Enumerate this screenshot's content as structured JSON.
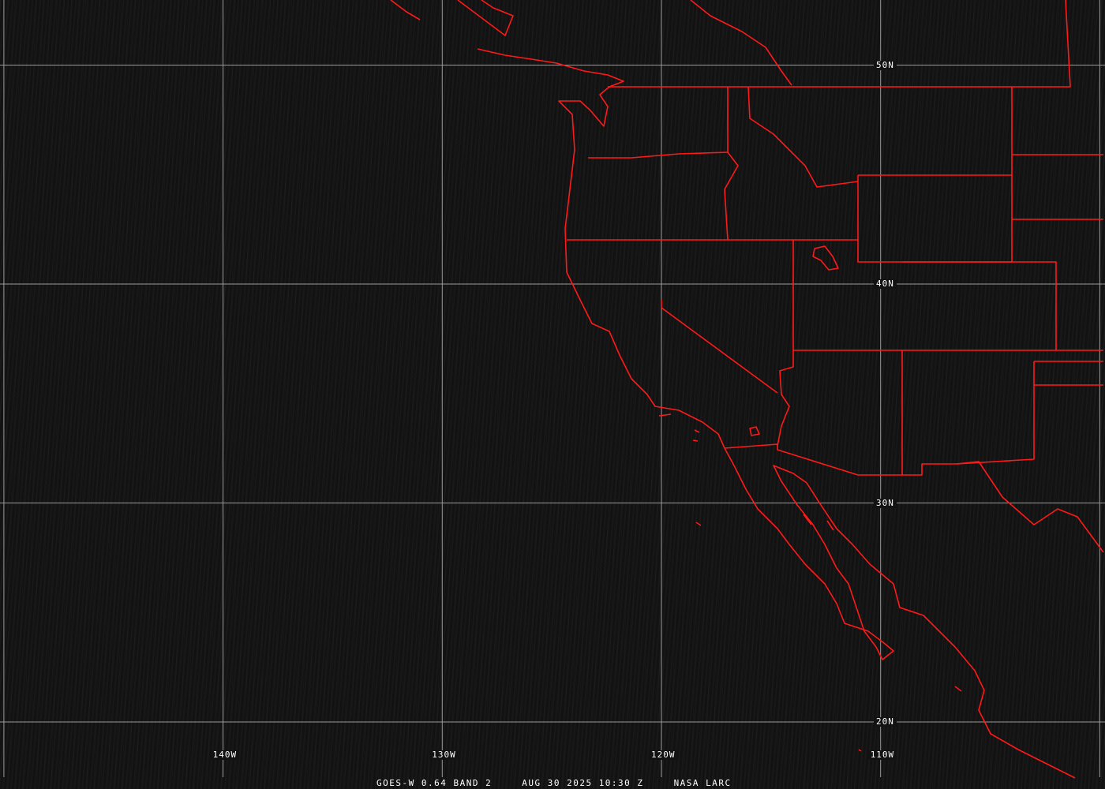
{
  "colors": {
    "grid": "#9a9a9a",
    "borders": "#ff1a1a",
    "background": "#121212",
    "text": "#ffffff"
  },
  "grid": {
    "longitudes": [
      {
        "label": "140W",
        "lon": -140
      },
      {
        "label": "130W",
        "lon": -130
      },
      {
        "label": "120W",
        "lon": -120
      },
      {
        "label": "110W",
        "lon": -110
      }
    ],
    "latitudes": [
      {
        "label": "50N",
        "lat": 50
      },
      {
        "label": "40N",
        "lat": 40
      },
      {
        "label": "30N",
        "lat": 30
      },
      {
        "label": "20N",
        "lat": 20
      }
    ]
  },
  "footer": {
    "satellite": "GOES-W 0.64 BAND 2",
    "datetime": "AUG 30 2025 10:30 Z",
    "source": "NASA LARC"
  }
}
